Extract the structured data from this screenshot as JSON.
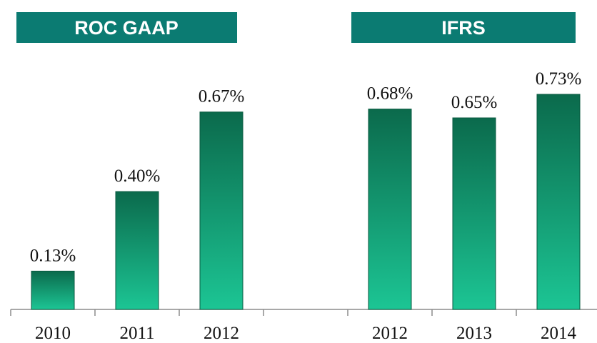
{
  "chart_data": {
    "type": "bar",
    "annotations": [
      "ROC  GAAP",
      "IFRS"
    ],
    "categories": [
      "2010",
      "2011",
      "2012",
      null,
      "2012",
      "2013",
      "2014"
    ],
    "values": [
      0.13,
      0.4,
      0.67,
      null,
      0.68,
      0.65,
      0.73
    ],
    "value_labels": [
      "0.13%",
      "0.40%",
      "0.67%",
      null,
      "0.68%",
      "0.65%",
      "0.73%"
    ],
    "color": "#1cc594"
  }
}
